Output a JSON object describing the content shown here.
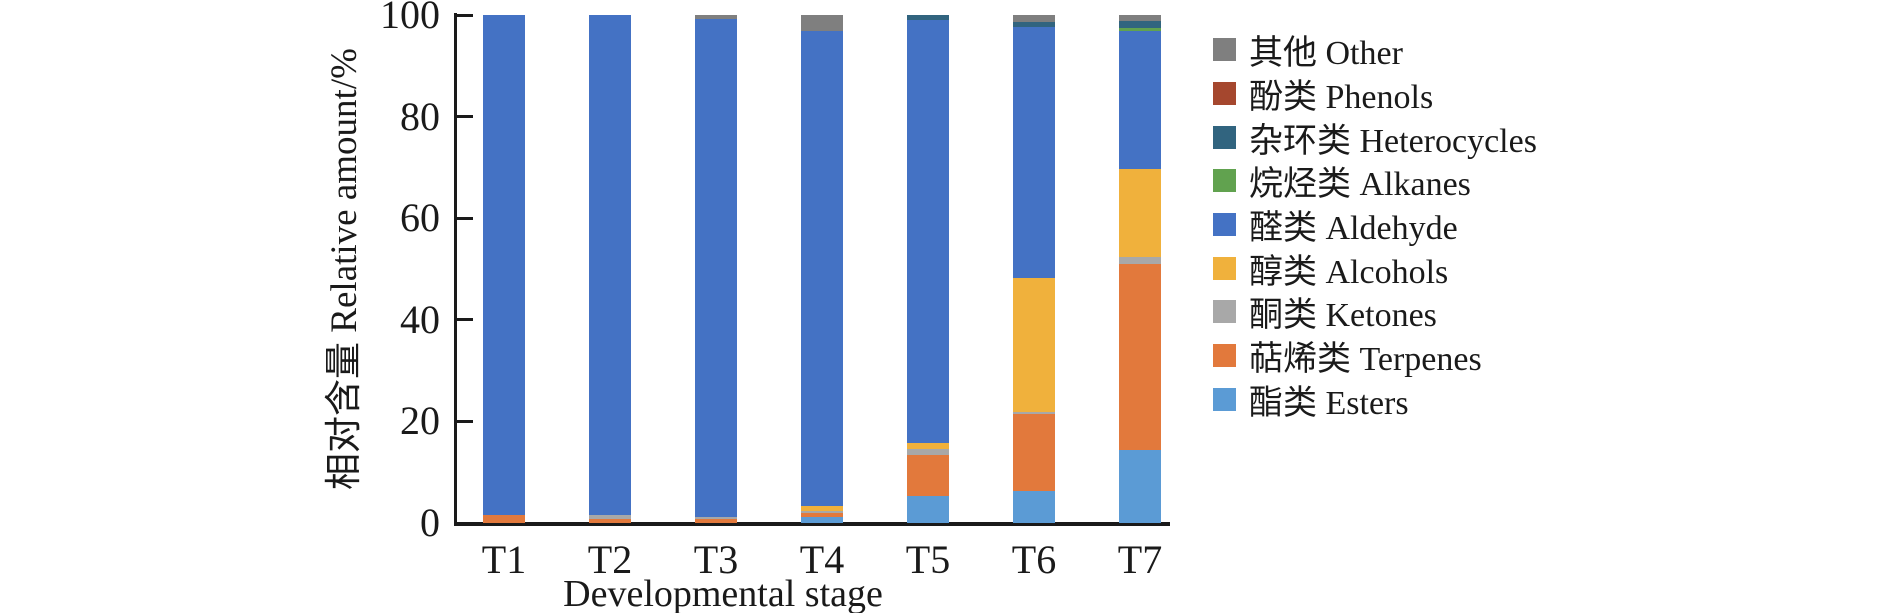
{
  "chart_data": {
    "type": "bar",
    "stacked": true,
    "orientation": "vertical",
    "title": "",
    "xlabel": "Developmental stage",
    "ylabel": "相对含量 Relative amount/%",
    "categories": [
      "T1",
      "T2",
      "T3",
      "T4",
      "T5",
      "T6",
      "T7"
    ],
    "ylim": [
      0,
      100
    ],
    "yticks": [
      0,
      20,
      40,
      60,
      80,
      100
    ],
    "grid": false,
    "legend_position": "right",
    "legend_order_top_to_bottom": [
      "其他 Other",
      "酚类 Phenols",
      "杂环类 Heterocycles",
      "烷烃类 Alkanes",
      "醛类 Aldehyde",
      "醇类 Alcohols",
      "酮类 Ketones",
      "萜烯类 Terpenes",
      "酯类 Esters"
    ],
    "series": [
      {
        "name": "酯类 Esters",
        "color": "#5B9BD5",
        "values": [
          0,
          0,
          0,
          1.1,
          5.4,
          6.4,
          14.3
        ]
      },
      {
        "name": "萜烯类 Terpenes",
        "color": "#E2793C",
        "values": [
          1.5,
          0.8,
          0.7,
          0.9,
          7.9,
          15.0,
          36.7
        ]
      },
      {
        "name": "酮类 Ketones",
        "color": "#A8A8A8",
        "values": [
          0,
          0.7,
          0.5,
          0.3,
          1.2,
          0.5,
          1.3
        ]
      },
      {
        "name": "醇类 Alcohols",
        "color": "#F0B13C",
        "values": [
          0,
          0,
          0,
          1.0,
          1.2,
          26.4,
          17.3
        ]
      },
      {
        "name": "醛类 Aldehyde",
        "color": "#4472C4",
        "values": [
          98.5,
          98.5,
          98.1,
          93.5,
          83.3,
          49.3,
          27.2
        ]
      },
      {
        "name": "烷烃类 Alkanes",
        "color": "#61A24F",
        "values": [
          0,
          0,
          0,
          0,
          0,
          0,
          0.6
        ]
      },
      {
        "name": "杂环类 Heterocycles",
        "color": "#31647F",
        "values": [
          0,
          0,
          0,
          0,
          1.0,
          1.0,
          1.5
        ]
      },
      {
        "name": "酚类 Phenols",
        "color": "#A5472E",
        "values": [
          0,
          0,
          0,
          0,
          0,
          0,
          0
        ]
      },
      {
        "name": "其他 Other",
        "color": "#7F7F7F",
        "values": [
          0,
          0,
          0.7,
          3.2,
          0,
          1.4,
          1.1
        ]
      }
    ],
    "axis_color": "#1a1a1a"
  },
  "layout_hints": {
    "bar_area_note": "seven stacked bars T1-T7, each summing to 100%"
  }
}
